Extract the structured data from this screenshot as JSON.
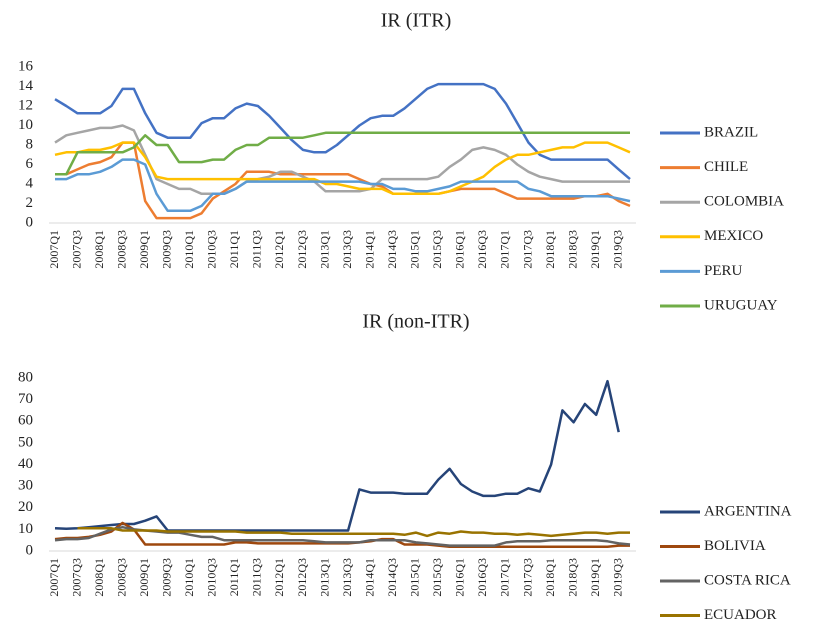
{
  "chart_data": [
    {
      "type": "line",
      "title": "IR (ITR)",
      "categories": [
        "2007Q1",
        null,
        "2007Q3",
        null,
        "2008Q1",
        null,
        "2008Q3",
        null,
        "2009Q1",
        null,
        "2009Q3",
        null,
        "2010Q1",
        null,
        "2010Q3",
        null,
        "2011Q1",
        null,
        "2011Q3",
        null,
        "2012Q1",
        null,
        "2012Q3",
        null,
        "2013Q1",
        null,
        "2013Q3",
        null,
        "2014Q1",
        null,
        "2014Q3",
        null,
        "2015Q1",
        null,
        "2015Q3",
        null,
        "2016Q1",
        null,
        "2016Q3",
        null,
        "2017Q1",
        null,
        "2017Q3",
        null,
        "2018Q1",
        null,
        "2018Q3",
        null,
        "2019Q1",
        null,
        "2019Q3",
        null
      ],
      "ylim": [
        0,
        16
      ],
      "yticks": [
        0,
        2,
        4,
        6,
        8,
        10,
        12,
        14,
        16
      ],
      "series": [
        {
          "name": "BRAZIL",
          "color": "#4472c4",
          "values": [
            12.7,
            12,
            11.25,
            11.25,
            11.25,
            12,
            13.75,
            13.75,
            11.25,
            9.25,
            8.75,
            8.75,
            8.75,
            10.25,
            10.75,
            10.75,
            11.75,
            12.25,
            12,
            11,
            9.75,
            8.5,
            7.5,
            7.25,
            7.25,
            8,
            9,
            10,
            10.75,
            11,
            11,
            11.75,
            12.75,
            13.75,
            14.25,
            14.25,
            14.25,
            14.25,
            14.25,
            13.75,
            12.25,
            10.25,
            8.25,
            7,
            6.5,
            6.5,
            6.5,
            6.5,
            6.5,
            6.5,
            5.5,
            4.5
          ]
        },
        {
          "name": "CHILE",
          "color": "#ed7d31",
          "values": [
            5,
            5,
            5.5,
            6,
            6.25,
            6.75,
            8.25,
            8.25,
            2.25,
            0.5,
            0.5,
            0.5,
            0.5,
            1,
            2.5,
            3.25,
            4,
            5.25,
            5.25,
            5.25,
            5,
            5,
            5,
            5,
            5,
            5,
            5,
            4.5,
            4,
            3.75,
            3,
            3,
            3,
            3,
            3,
            3.25,
            3.5,
            3.5,
            3.5,
            3.5,
            3,
            2.5,
            2.5,
            2.5,
            2.5,
            2.5,
            2.5,
            2.75,
            2.75,
            3,
            2.25,
            1.75
          ]
        },
        {
          "name": "COLOMBIA",
          "color": "#a5a5a5",
          "values": [
            8.25,
            9,
            9.25,
            9.5,
            9.75,
            9.75,
            10,
            9.5,
            7,
            4.5,
            4,
            3.5,
            3.5,
            3,
            3,
            3,
            3.5,
            4.25,
            4.5,
            4.75,
            5.25,
            5.25,
            4.75,
            4.25,
            3.25,
            3.25,
            3.25,
            3.25,
            3.5,
            4.5,
            4.5,
            4.5,
            4.5,
            4.5,
            4.75,
            5.75,
            6.5,
            7.5,
            7.75,
            7.5,
            7,
            6,
            5.25,
            4.75,
            4.5,
            4.25,
            4.25,
            4.25,
            4.25,
            4.25,
            4.25,
            4.25
          ]
        },
        {
          "name": "MEXICO",
          "color": "#ffc000",
          "values": [
            7,
            7.25,
            7.25,
            7.5,
            7.5,
            7.75,
            8.25,
            8.25,
            6.75,
            4.75,
            4.5,
            4.5,
            4.5,
            4.5,
            4.5,
            4.5,
            4.5,
            4.5,
            4.5,
            4.5,
            4.5,
            4.5,
            4.5,
            4.5,
            4,
            4,
            3.75,
            3.5,
            3.5,
            3.5,
            3,
            3,
            3,
            3,
            3,
            3.25,
            3.75,
            4.25,
            4.75,
            5.75,
            6.5,
            7,
            7,
            7.25,
            7.5,
            7.75,
            7.75,
            8.25,
            8.25,
            8.25,
            7.75,
            7.25
          ]
        },
        {
          "name": "PERU",
          "color": "#5b9bd5",
          "values": [
            4.5,
            4.5,
            5,
            5,
            5.25,
            5.75,
            6.5,
            6.5,
            6,
            3,
            1.25,
            1.25,
            1.25,
            1.75,
            3,
            3,
            3.5,
            4.25,
            4.25,
            4.25,
            4.25,
            4.25,
            4.25,
            4.25,
            4.25,
            4.25,
            4.25,
            4.25,
            4,
            4,
            3.5,
            3.5,
            3.25,
            3.25,
            3.5,
            3.75,
            4.25,
            4.25,
            4.25,
            4.25,
            4.25,
            4.25,
            3.5,
            3.25,
            2.75,
            2.75,
            2.75,
            2.75,
            2.75,
            2.75,
            2.5,
            2.25
          ]
        },
        {
          "name": "URUGUAY",
          "color": "#70ad47",
          "values": [
            5,
            5,
            7.25,
            7.25,
            7.25,
            7.25,
            7.25,
            7.75,
            9,
            8,
            8,
            6.25,
            6.25,
            6.25,
            6.5,
            6.5,
            7.5,
            8,
            8,
            8.75,
            8.75,
            8.75,
            8.75,
            9,
            9.25,
            9.25,
            9.25,
            9.25,
            9.25,
            9.25,
            9.25,
            9.25,
            9.25,
            9.25,
            9.25,
            9.25,
            9.25,
            9.25,
            9.25,
            9.25,
            9.25,
            9.25,
            9.25,
            9.25,
            9.25,
            9.25,
            9.25,
            9.25,
            9.25,
            9.25,
            9.25,
            9.25
          ]
        }
      ]
    },
    {
      "type": "line",
      "title": "IR (non-ITR)",
      "categories": [
        "2007Q1",
        null,
        "2007Q3",
        null,
        "2008Q1",
        null,
        "2008Q3",
        null,
        "2009Q1",
        null,
        "2009Q3",
        null,
        "2010Q1",
        null,
        "2010Q3",
        null,
        "2011Q1",
        null,
        "2011Q3",
        null,
        "2012Q1",
        null,
        "2012Q3",
        null,
        "2013Q1",
        null,
        "2013Q3",
        null,
        "2014Q1",
        null,
        "2014Q3",
        null,
        "2015Q1",
        null,
        "2015Q3",
        null,
        "2016Q1",
        null,
        "2016Q3",
        null,
        "2017Q1",
        null,
        "2017Q3",
        null,
        "2018Q1",
        null,
        "2018Q3",
        null,
        "2019Q1",
        null,
        "2019Q3",
        null
      ],
      "ylim": [
        0,
        80
      ],
      "yticks": [
        0,
        10,
        20,
        30,
        40,
        50,
        60,
        70,
        80
      ],
      "series": [
        {
          "name": "ARGENTINA",
          "color": "#264478",
          "values": [
            10.5,
            10.3,
            10.5,
            11,
            11.5,
            12,
            12.5,
            12.5,
            14,
            16,
            9.5,
            9.5,
            9.5,
            9.5,
            9.5,
            9.5,
            9.5,
            9.5,
            9.5,
            9.5,
            9.5,
            9.5,
            9.5,
            9.5,
            9.5,
            9.5,
            9.5,
            28.5,
            27,
            27,
            27,
            26.5,
            26.5,
            26.5,
            33,
            38,
            31,
            27.5,
            25.5,
            25.5,
            26.5,
            26.5,
            29,
            27.5,
            40,
            65,
            59.5,
            68,
            63,
            78.5,
            55,
            null
          ]
        },
        {
          "name": "BOLIVIA",
          "color": "#9e480e",
          "values": [
            5.5,
            6,
            6,
            6.5,
            7.5,
            9,
            13,
            10,
            3,
            3,
            3,
            3,
            3,
            3,
            3,
            3,
            4,
            4,
            3.5,
            3.5,
            3.5,
            3.5,
            3.5,
            3.5,
            3.5,
            3.5,
            3.5,
            4,
            4.5,
            5.5,
            5.5,
            3,
            3,
            3,
            2.5,
            2,
            2,
            2,
            2,
            2,
            2,
            2,
            2,
            2,
            2,
            2,
            2,
            2,
            2,
            2,
            2.5,
            2.5
          ]
        },
        {
          "name": "COSTA RICA",
          "color": "#636363",
          "values": [
            5,
            5.5,
            5.5,
            6,
            8,
            10,
            11,
            10,
            9.5,
            9,
            8.5,
            8.5,
            7.5,
            6.5,
            6.5,
            5,
            5,
            5,
            5,
            5,
            5,
            5,
            5,
            4.5,
            4,
            4,
            4,
            4,
            5,
            5,
            5,
            5,
            4,
            3.5,
            3,
            2.5,
            2.5,
            2.5,
            2.5,
            2.5,
            4,
            4.5,
            4.5,
            4.5,
            5,
            5,
            5,
            5,
            5,
            4.5,
            3.5,
            3
          ]
        },
        {
          "name": "ECUADOR",
          "color": "#997300",
          "values": [
            null,
            null,
            10.5,
            10.5,
            10.5,
            10.5,
            9.5,
            9.5,
            9.5,
            9.5,
            9,
            9,
            9,
            9,
            9,
            9,
            9,
            8.5,
            8.5,
            8.5,
            8.5,
            8,
            8,
            8,
            8,
            8,
            8,
            8,
            8,
            8,
            8,
            7.5,
            8.5,
            7,
            8.5,
            8,
            9,
            8.5,
            8.5,
            8,
            8,
            7.5,
            8,
            7.5,
            7,
            7.5,
            8,
            8.5,
            8.5,
            8,
            8.5,
            8.5
          ]
        }
      ]
    }
  ]
}
